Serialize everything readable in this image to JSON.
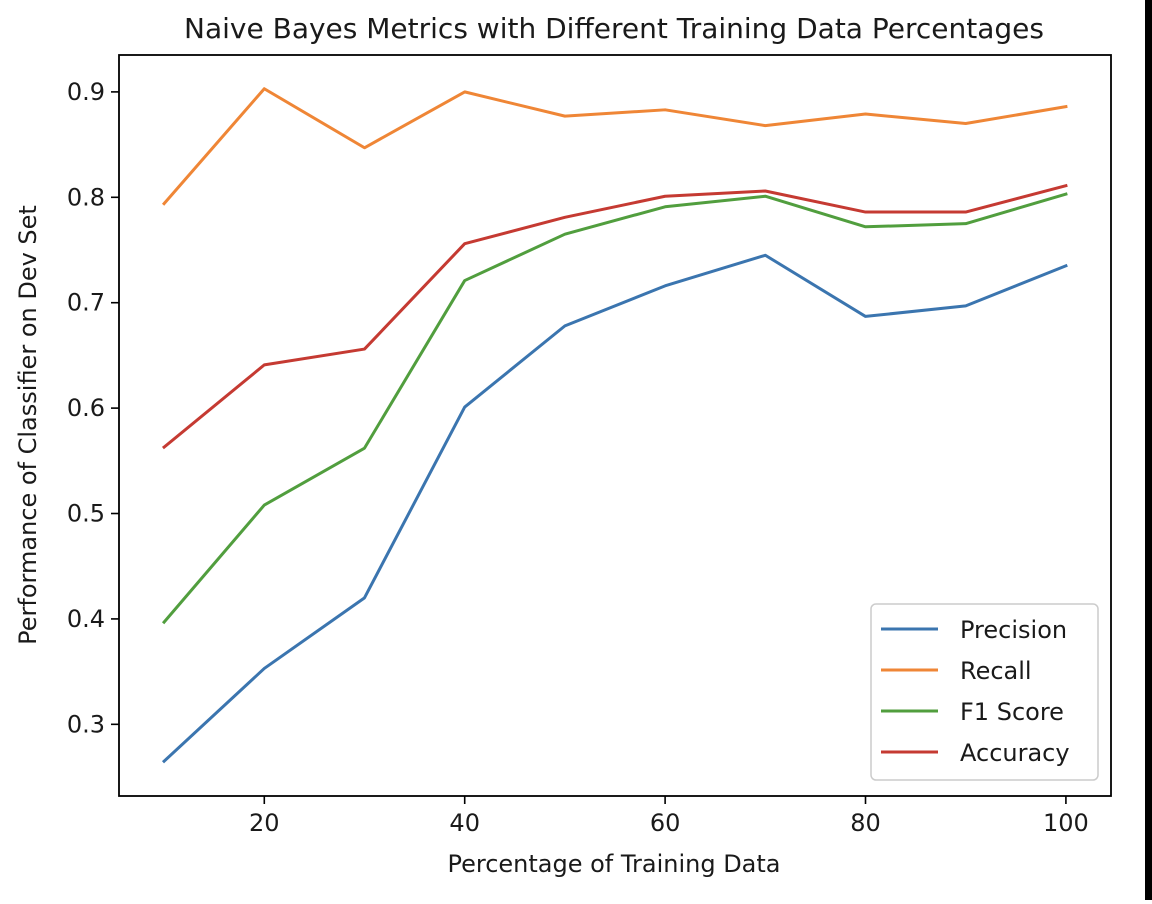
{
  "chart_data": {
    "type": "line",
    "title": "Naive Bayes Metrics with Different Training Data Percentages",
    "xlabel": "Percentage of Training Data",
    "ylabel": "Performance of Classifier on Dev Set",
    "x": [
      10,
      20,
      30,
      40,
      50,
      60,
      70,
      80,
      90,
      100
    ],
    "xlim": [
      5.5,
      104.5
    ],
    "ylim": [
      0.232,
      0.935
    ],
    "xticks": [
      20,
      40,
      60,
      80,
      100
    ],
    "yticks": [
      0.3,
      0.4,
      0.5,
      0.6,
      0.7,
      0.8,
      0.9
    ],
    "xtick_labels": [
      "20",
      "40",
      "60",
      "80",
      "100"
    ],
    "ytick_labels": [
      "0.3",
      "0.4",
      "0.5",
      "0.6",
      "0.7",
      "0.8",
      "0.9"
    ],
    "grid": false,
    "legend_position": "bottom-right",
    "series": [
      {
        "name": "Precision",
        "color": "#3b75af",
        "values": [
          0.265,
          0.353,
          0.42,
          0.601,
          0.678,
          0.716,
          0.745,
          0.687,
          0.697,
          0.735
        ]
      },
      {
        "name": "Recall",
        "color": "#ef8636",
        "values": [
          0.794,
          0.903,
          0.847,
          0.9,
          0.877,
          0.883,
          0.868,
          0.879,
          0.87,
          0.886
        ]
      },
      {
        "name": "F1 Score",
        "color": "#519e3e",
        "values": [
          0.397,
          0.508,
          0.562,
          0.721,
          0.765,
          0.791,
          0.801,
          0.772,
          0.775,
          0.803
        ]
      },
      {
        "name": "Accuracy",
        "color": "#c53a32",
        "values": [
          0.563,
          0.641,
          0.656,
          0.756,
          0.781,
          0.801,
          0.806,
          0.786,
          0.786,
          0.811
        ]
      }
    ]
  }
}
